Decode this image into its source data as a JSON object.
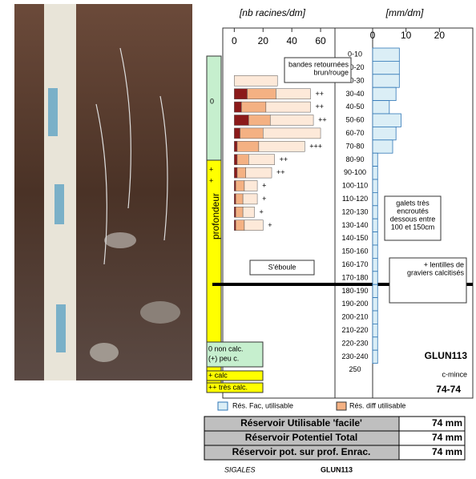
{
  "headers": {
    "roots_unit": "[nb racines/dm]",
    "water_unit": "[mm/dm]"
  },
  "chart_data": [
    {
      "type": "stacked-hbar",
      "xlim": [
        -8,
        70
      ],
      "xticks": [
        0,
        20,
        40,
        60
      ],
      "series": [
        {
          "color": "#8b1a1a",
          "values": [
            null,
            null,
            0,
            9,
            5,
            10,
            4,
            2,
            2,
            2,
            1,
            1,
            1,
            1,
            null,
            null,
            null,
            null,
            null,
            null,
            null,
            null,
            null,
            null,
            null
          ]
        },
        {
          "color": "#f4b183",
          "values": [
            null,
            null,
            0,
            20,
            17,
            15,
            16,
            15,
            8,
            6,
            6,
            5,
            5,
            6,
            null,
            null,
            null,
            null,
            null,
            null,
            null,
            null,
            null,
            null,
            null
          ]
        },
        {
          "color": "#fde9d9",
          "values": [
            null,
            null,
            30,
            24,
            31,
            30,
            40,
            32,
            18,
            18,
            9,
            10,
            8,
            13,
            null,
            null,
            null,
            null,
            null,
            null,
            null,
            null,
            null,
            null,
            null
          ]
        }
      ],
      "bar_marks": [
        null,
        null,
        null,
        "++",
        "++",
        "++",
        null,
        "+++",
        "++",
        "++",
        "+",
        "+",
        "+",
        "+",
        null,
        null,
        null,
        null,
        null,
        null,
        null,
        null,
        null,
        null,
        null
      ],
      "axis_label": "profondeur"
    },
    {
      "type": "hbar",
      "xlim": [
        0,
        30
      ],
      "xticks": [
        0,
        10,
        20
      ],
      "color": "#dbeef6",
      "edge": "#2e75b6",
      "categories": [
        "0-10",
        "10-20",
        "20-30",
        "30-40",
        "40-50",
        "50-60",
        "60-70",
        "70-80",
        "80-90",
        "90-100",
        "100-110",
        "110-120",
        "120-130",
        "130-140",
        "140-150",
        "150-160",
        "160-170",
        "170-180",
        "180-190",
        "190-200",
        "200-210",
        "210-220",
        "220-230",
        "230-240",
        "250"
      ],
      "values": [
        8,
        8,
        8,
        7,
        5,
        8.5,
        7,
        6,
        1.5,
        1.5,
        1.5,
        1.5,
        1.5,
        1.5,
        1.5,
        1.5,
        1.5,
        1.5,
        1.5,
        1.5,
        1.5,
        1.5,
        1.5,
        1.5,
        null
      ]
    }
  ],
  "annotations": {
    "bands": [
      "bandes retournées",
      "brun/rouge"
    ],
    "pebbles": [
      "galets très",
      "encroutés",
      "dessous entre",
      "100 et 150cm"
    ],
    "collapse": "S'éboule",
    "lenses": [
      "+ lentilles de",
      "graviers calcitisés"
    ]
  },
  "calc_legend": {
    "zero": "0",
    "plus1": "+",
    "plus2": "+",
    "noncalc": [
      "0 non calc.",
      "(+) peu c."
    ],
    "calc": "+ calc",
    "tres": "++ très calc."
  },
  "profile": {
    "id": "GLUN113",
    "type": "c-mince",
    "code": "74-74"
  },
  "legend": {
    "fac": "Rés. Fac, utilisable",
    "diff": "Rés. diff utilisable"
  },
  "table": {
    "rows": [
      [
        "Réservoir Utilisable 'facile'",
        "74 mm"
      ],
      [
        "Réservoir Potentiel Total",
        "74 mm"
      ],
      [
        "Réservoir pot. sur prof. Enrac.",
        "74 mm"
      ]
    ]
  },
  "footer": {
    "logo": "SIGALES",
    "id": "GLUN113"
  }
}
